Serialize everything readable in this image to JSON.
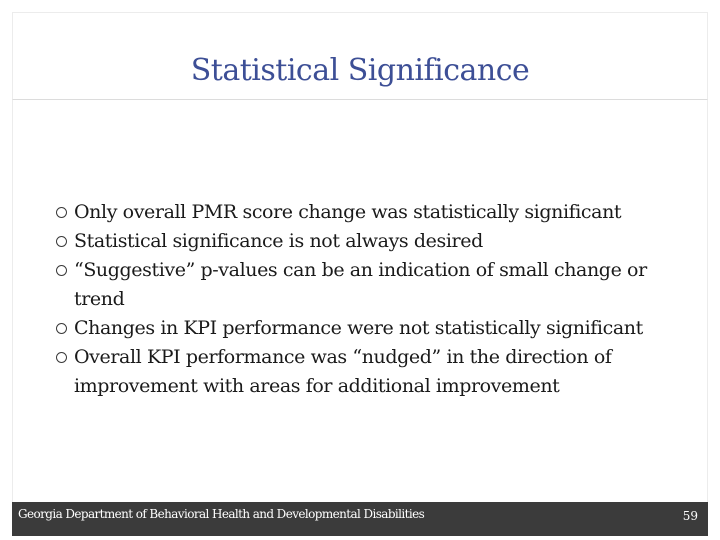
{
  "slide": {
    "title": "Statistical Significance",
    "bullets": [
      "Only overall PMR score change was statistically significant",
      "Statistical significance is not always desired",
      "“Suggestive” p-values can be an indication of small change or trend",
      "Changes in KPI performance were not statistically significant",
      "Overall KPI performance was “nudged” in the direction of improvement with areas for additional improvement"
    ],
    "bullet_icon": "hollow-circle-icon"
  },
  "footer": {
    "organization": "Georgia Department of Behavioral Health and Developmental Disabilities",
    "page_number": "59",
    "background_color": "#3b3b3b"
  },
  "colors": {
    "title": "#3d4f96",
    "text": "#1a1a1a"
  }
}
